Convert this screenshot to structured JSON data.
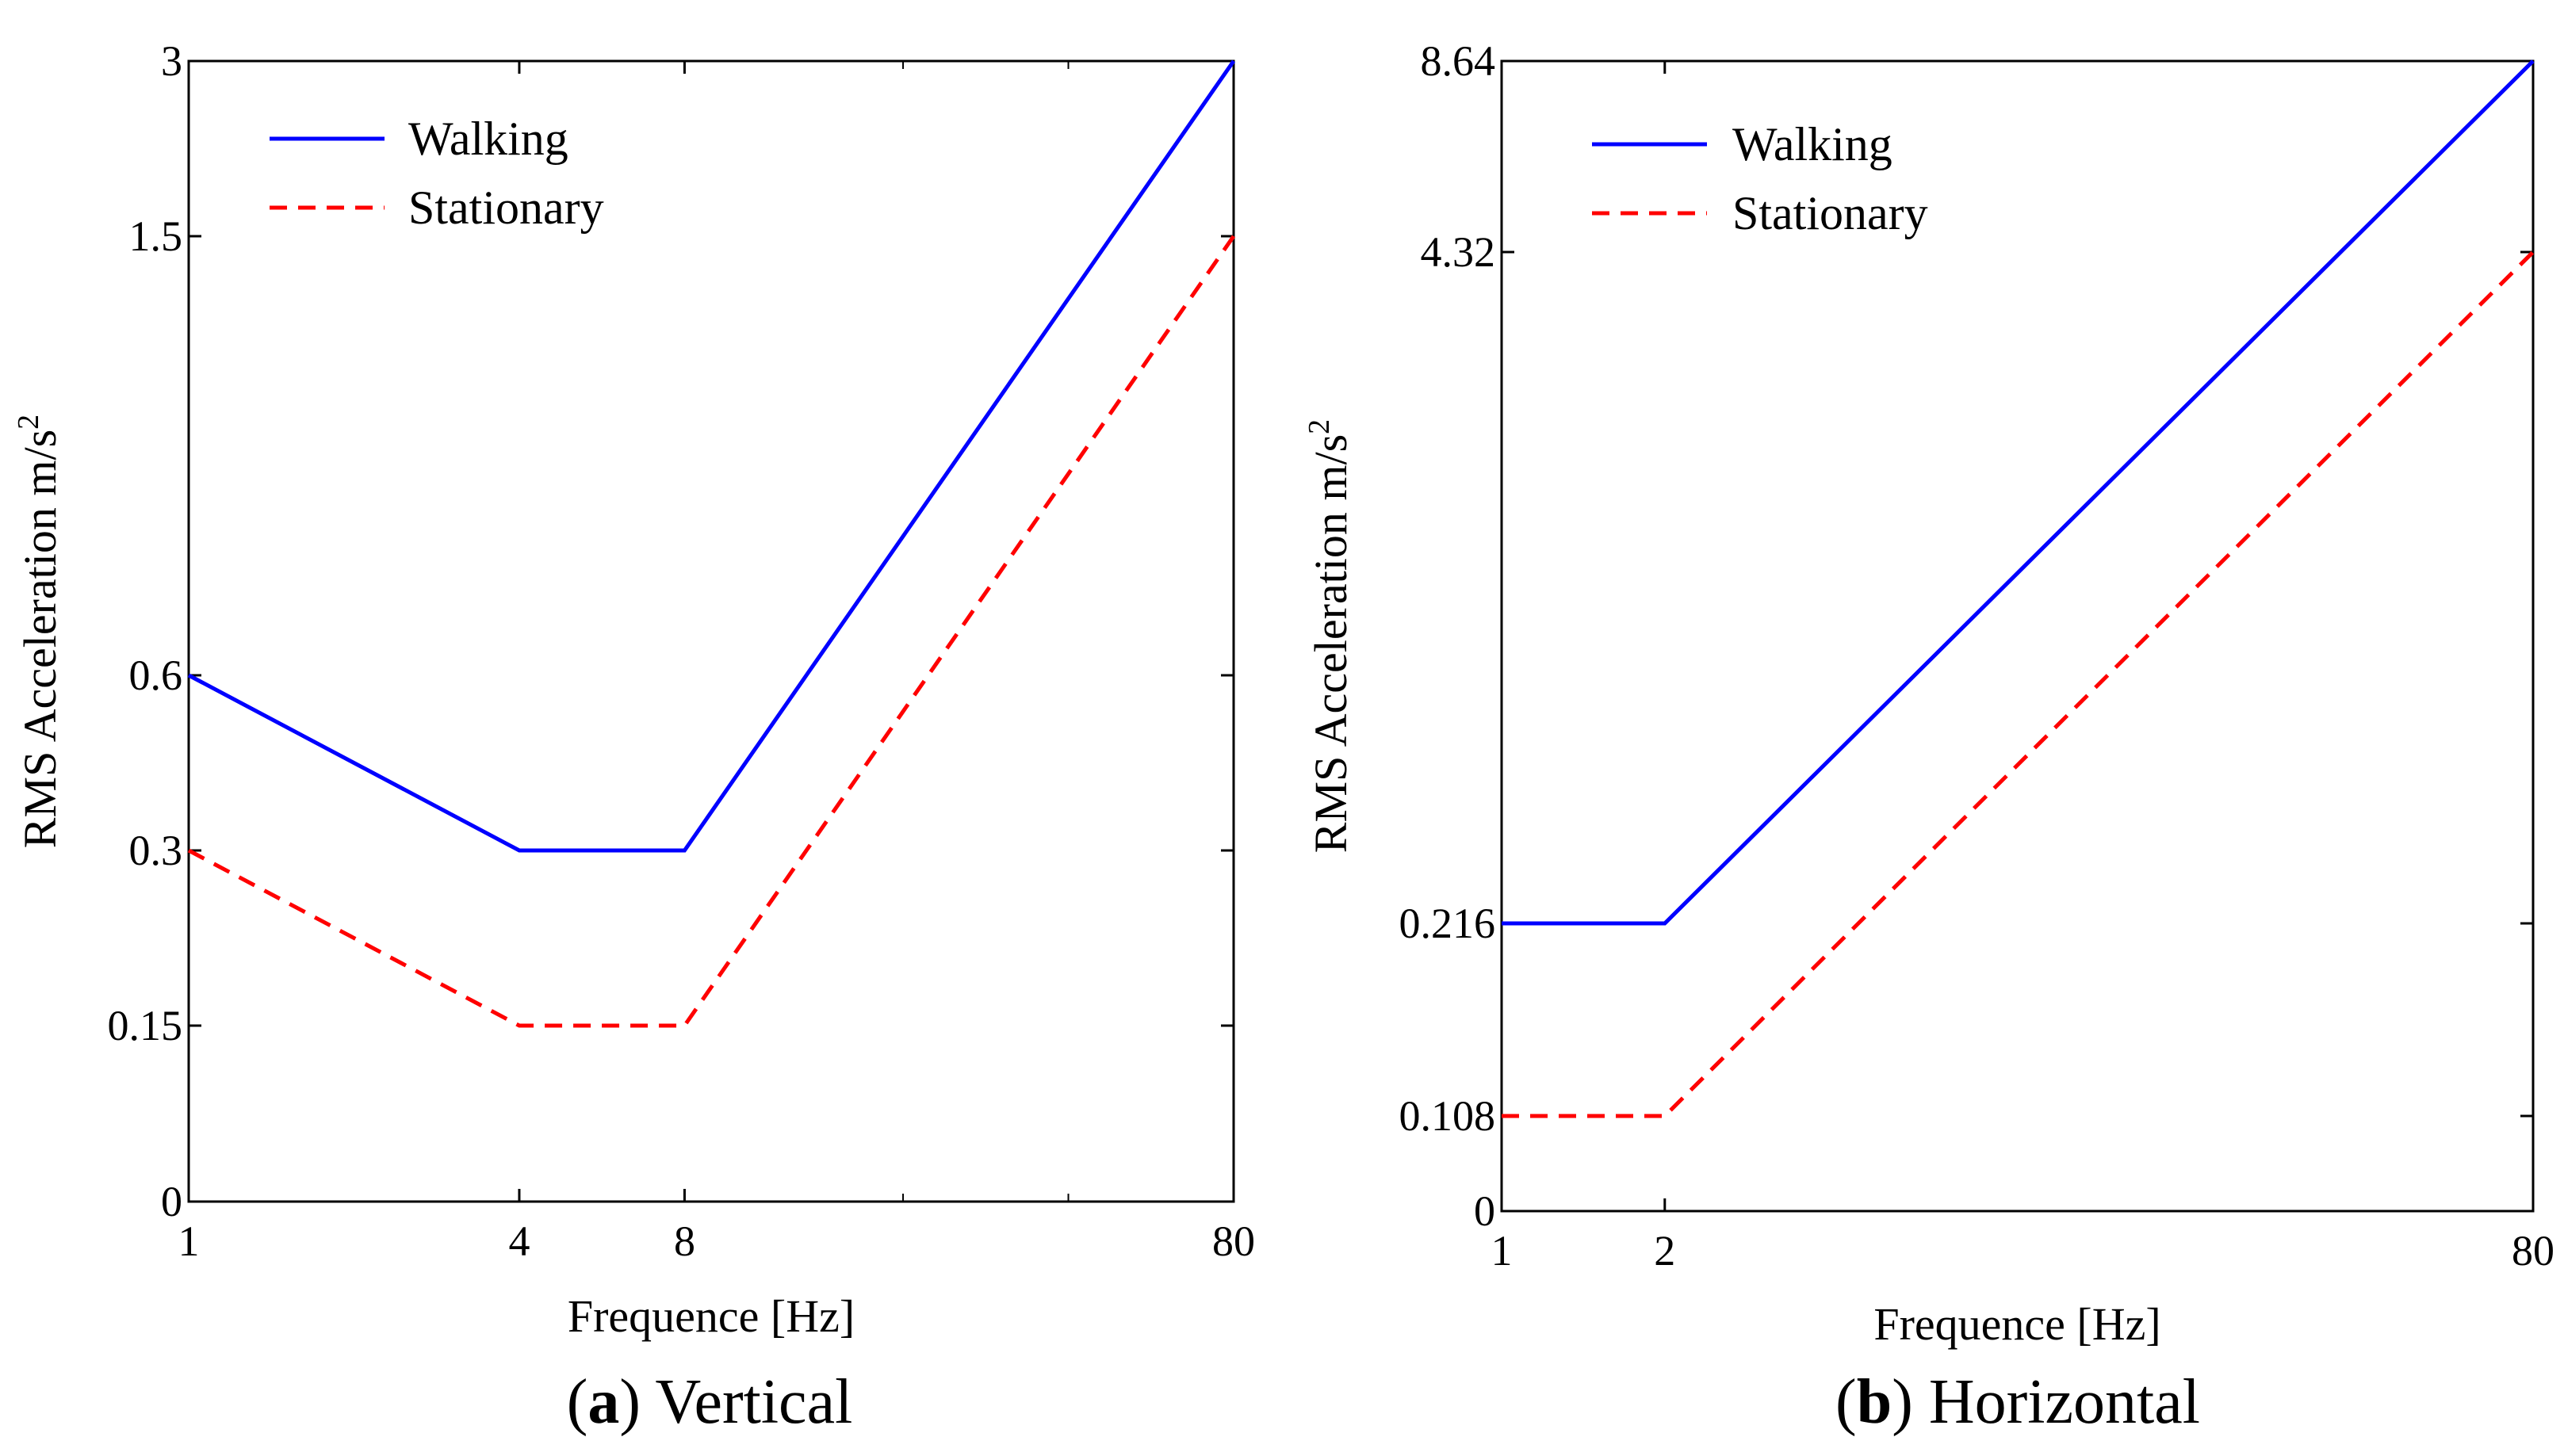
{
  "chart_data": [
    {
      "type": "line",
      "caption_letter": "a",
      "caption_text": "Vertical",
      "xlabel": "Frequence [Hz]",
      "ylabel": "RMS Acceleration m/s",
      "ylabel_sup": "2",
      "x_scale": "log",
      "xlim": [
        1,
        80
      ],
      "x_ticks": [
        1,
        4,
        8,
        80
      ],
      "x_tick_labels": [
        "1",
        "4",
        "8",
        "80"
      ],
      "x_minor_ticks": [
        20,
        40
      ],
      "y_ticks": [
        0,
        0.15,
        0.3,
        0.6,
        1.5,
        3
      ],
      "y_tick_labels": [
        "0",
        "0.15",
        "0.3",
        "0.6",
        "1.5",
        "3"
      ],
      "legend_position": "top-left",
      "series": [
        {
          "name": "Walking",
          "color": "#0000ff",
          "dash": "solid",
          "x": [
            1,
            4,
            8,
            80
          ],
          "y": [
            0.6,
            0.3,
            0.3,
            3
          ]
        },
        {
          "name": "Stationary",
          "color": "#ff0000",
          "dash": "dashed",
          "x": [
            1,
            4,
            8,
            80
          ],
          "y": [
            0.3,
            0.15,
            0.15,
            1.5
          ]
        }
      ]
    },
    {
      "type": "line",
      "caption_letter": "b",
      "caption_text": "Horizontal",
      "xlabel": "Frequence [Hz]",
      "ylabel": "RMS Acceleration m/s",
      "ylabel_sup": "2",
      "x_scale": "log",
      "xlim": [
        1,
        80
      ],
      "x_ticks": [
        1,
        2,
        80
      ],
      "x_tick_labels": [
        "1",
        "2",
        "80"
      ],
      "x_minor_ticks": [],
      "y_ticks": [
        0,
        0.108,
        0.216,
        4.32,
        8.64
      ],
      "y_tick_labels": [
        "0",
        "0.108",
        "0.216",
        "4.32",
        "8.64"
      ],
      "legend_position": "top-left",
      "series": [
        {
          "name": "Walking",
          "color": "#0000ff",
          "dash": "solid",
          "x": [
            1,
            2,
            80
          ],
          "y": [
            0.216,
            0.216,
            8.64
          ]
        },
        {
          "name": "Stationary",
          "color": "#ff0000",
          "dash": "dashed",
          "x": [
            1,
            2,
            80
          ],
          "y": [
            0.108,
            0.108,
            4.32
          ]
        }
      ]
    }
  ]
}
